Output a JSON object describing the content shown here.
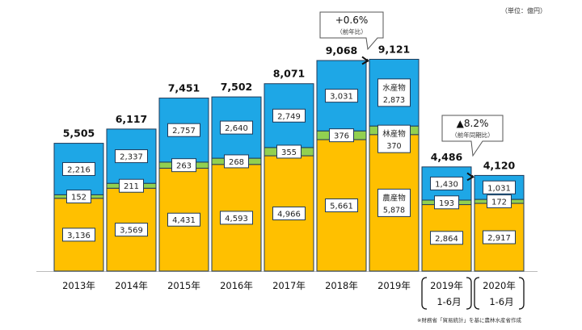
{
  "chart_data": {
    "type": "bar",
    "stacked": true,
    "unit_note": "（単位：億円）",
    "footnote": "※財務省「貿易統計」を基に農林水産省作成",
    "categories": [
      "2013年",
      "2014年",
      "2015年",
      "2016年",
      "2017年",
      "2018年",
      "2019年",
      "2019年 1-6月",
      "2020年 1-6月"
    ],
    "category_lines": [
      [
        "2013年"
      ],
      [
        "2014年"
      ],
      [
        "2015年"
      ],
      [
        "2016年"
      ],
      [
        "2017年"
      ],
      [
        "2018年"
      ],
      [
        "2019年"
      ],
      [
        "2019年",
        "1-6月"
      ],
      [
        "2020年",
        "1-6月"
      ]
    ],
    "totals": [
      "5,505",
      "6,117",
      "7,451",
      "7,502",
      "8,071",
      "9,068",
      "9,121",
      "4,486",
      "4,120"
    ],
    "series": [
      {
        "name": "農産物",
        "color": "#ffc000",
        "values": [
          3136,
          3569,
          4431,
          4593,
          4966,
          5661,
          5878,
          2864,
          2917
        ],
        "labels": [
          "3,136",
          "3,569",
          "4,431",
          "4,593",
          "4,966",
          "5,661",
          "5,878",
          "2,864",
          "2,917"
        ]
      },
      {
        "name": "林産物",
        "color": "#92d050",
        "values": [
          152,
          211,
          263,
          268,
          355,
          376,
          370,
          193,
          172
        ],
        "labels": [
          "152",
          "211",
          "263",
          "268",
          "355",
          "376",
          "370",
          "193",
          "172"
        ]
      },
      {
        "name": "水産物",
        "color": "#1ea7e6",
        "values": [
          2216,
          2337,
          2757,
          2640,
          2749,
          3031,
          2873,
          1430,
          1031
        ],
        "labels": [
          "2,216",
          "2,337",
          "2,757",
          "2,640",
          "2,749",
          "3,031",
          "2,873",
          "1,430",
          "1,031"
        ]
      }
    ],
    "series_name_shown_in_category": 6,
    "ylim": [
      0,
      9500
    ],
    "grid": false,
    "annotations": [
      {
        "text": "+0.6%",
        "sub": "（前年比）",
        "from": 5,
        "to": 6
      },
      {
        "text": "▲8.2%",
        "sub": "（前年同期比）",
        "from": 7,
        "to": 8
      }
    ]
  }
}
